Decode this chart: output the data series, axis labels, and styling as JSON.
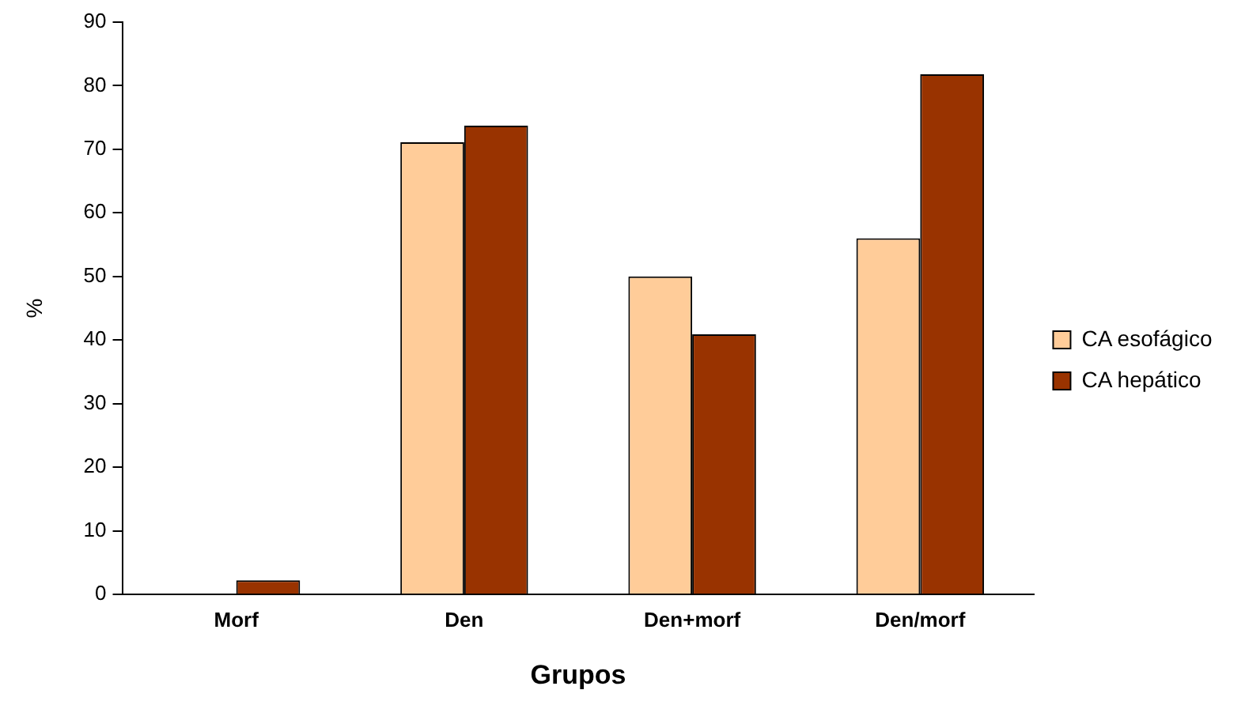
{
  "chart_data": {
    "type": "bar",
    "xlabel": "Grupos",
    "ylabel": "%",
    "categories": [
      "Morf",
      "Den",
      "Den+morf",
      "Den/morf"
    ],
    "series": [
      {
        "name": "CA esofágico",
        "color": "#ffcc99",
        "values": [
          0,
          71.1,
          50,
          56
        ]
      },
      {
        "name": "CA hepático",
        "color": "#993300",
        "values": [
          2.2,
          73.7,
          40.9,
          81.8
        ]
      }
    ],
    "ylim": [
      0,
      90
    ],
    "yticks": [
      0,
      10,
      20,
      30,
      40,
      50,
      60,
      70,
      80,
      90
    ],
    "grid": false,
    "legend": "right"
  }
}
